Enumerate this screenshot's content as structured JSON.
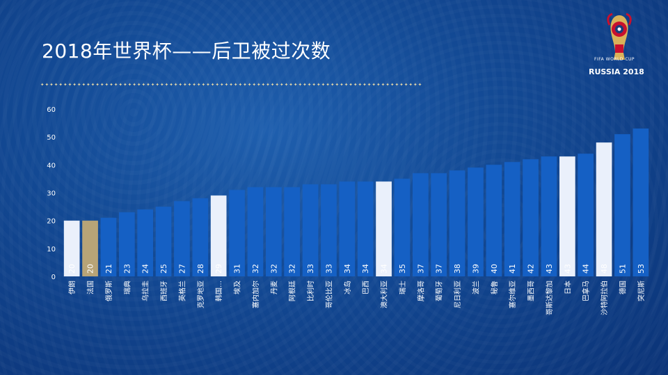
{
  "slide": {
    "title": "2018年世界杯——后卫被过次数",
    "divider": "✦✦✦✦✦✦✦✦✦✦✦✦✦✦✦✦✦✦✦✦✦✦✦✦✦✦✦✦✦✦✦✦✦✦✦✦✦✦✦✦✦✦✦✦✦✦✦✦✦✦✦✦✦✦✦✦✦✦✦✦✦✦✦✦✦✦✦✦✦✦✦✦✦✦✦✦✦✦✦✦✦✦✦"
  },
  "logo": {
    "line1": "FIFA WORLD CUP",
    "line2": "RUSSIA 2018",
    "colors": {
      "gold": "#d9b25a",
      "red": "#c8102e",
      "white": "#ffffff"
    }
  },
  "colors": {
    "bar_default": "#1560c4",
    "bar_highlight": "#eaf0fb",
    "bar_gold": "#b8a477",
    "value_text": "#ffffff"
  },
  "chart_data": {
    "type": "bar",
    "title": "",
    "xlabel": "",
    "ylabel": "",
    "ylim": [
      0,
      60
    ],
    "yticks": [
      0,
      10,
      20,
      30,
      40,
      50,
      60
    ],
    "grid": false,
    "categories": [
      "伊朗",
      "法国",
      "俄罗斯",
      "瑞典",
      "乌拉圭",
      "西班牙",
      "英格兰",
      "克罗地亚",
      "韩国…",
      "埃及",
      "塞内加尔",
      "丹麦",
      "阿根廷",
      "比利时",
      "哥伦比亚",
      "冰岛",
      "巴西",
      "澳大利亚",
      "瑞士",
      "摩洛哥",
      "葡萄牙",
      "尼日利亚",
      "波兰",
      "秘鲁",
      "塞尔维亚",
      "墨西哥",
      "哥斯达黎加",
      "日本",
      "巴拿马",
      "沙特阿拉伯",
      "德国",
      "突尼斯"
    ],
    "values": [
      20,
      20,
      21,
      23,
      24,
      25,
      27,
      28,
      29,
      31,
      32,
      32,
      32,
      33,
      33,
      34,
      34,
      34,
      35,
      37,
      37,
      38,
      39,
      40,
      41,
      42,
      43,
      43,
      44,
      48,
      51,
      53
    ],
    "bar_styles": [
      "highlight",
      "gold",
      "default",
      "default",
      "default",
      "default",
      "default",
      "default",
      "highlight",
      "default",
      "default",
      "default",
      "default",
      "default",
      "default",
      "default",
      "default",
      "highlight",
      "default",
      "default",
      "default",
      "default",
      "default",
      "default",
      "default",
      "default",
      "default",
      "highlight",
      "default",
      "highlight",
      "default",
      "default"
    ]
  }
}
